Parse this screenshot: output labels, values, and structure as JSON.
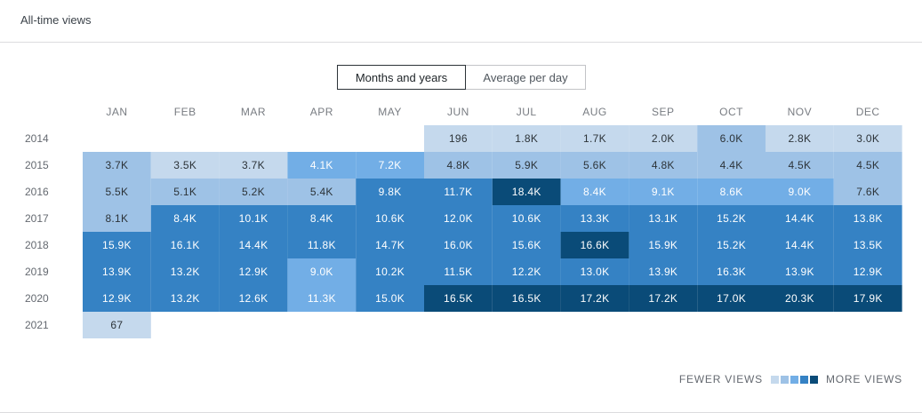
{
  "header": {
    "title": "All-time views"
  },
  "toggle": {
    "options": [
      {
        "label": "Months and years",
        "active": true
      },
      {
        "label": "Average per day",
        "active": false
      }
    ]
  },
  "legend": {
    "fewer_label": "FEWER VIEWS",
    "more_label": "MORE VIEWS",
    "scale_colors": [
      "#c5d9ed",
      "#9ec2e6",
      "#72aee6",
      "#3582c4",
      "#0a4b78"
    ]
  },
  "chart_data": {
    "type": "heatmap",
    "title": "All-time views",
    "columns": [
      "JAN",
      "FEB",
      "MAR",
      "APR",
      "MAY",
      "JUN",
      "JUL",
      "AUG",
      "SEP",
      "OCT",
      "NOV",
      "DEC"
    ],
    "rows": [
      "2014",
      "2015",
      "2016",
      "2017",
      "2018",
      "2019",
      "2020",
      "2021"
    ],
    "values": [
      [
        null,
        null,
        null,
        null,
        null,
        "196",
        "1.8K",
        "1.7K",
        "2.0K",
        "6.0K",
        "2.8K",
        "3.0K"
      ],
      [
        "3.7K",
        "3.5K",
        "3.7K",
        "4.1K",
        "7.2K",
        "4.8K",
        "5.9K",
        "5.6K",
        "4.8K",
        "4.4K",
        "4.5K",
        "4.5K"
      ],
      [
        "5.5K",
        "5.1K",
        "5.2K",
        "5.4K",
        "9.8K",
        "11.7K",
        "18.4K",
        "8.4K",
        "9.1K",
        "8.6K",
        "9.0K",
        "7.6K"
      ],
      [
        "8.1K",
        "8.4K",
        "10.1K",
        "8.4K",
        "10.6K",
        "12.0K",
        "10.6K",
        "13.3K",
        "13.1K",
        "15.2K",
        "14.4K",
        "13.8K"
      ],
      [
        "15.9K",
        "16.1K",
        "14.4K",
        "11.8K",
        "14.7K",
        "16.0K",
        "15.6K",
        "16.6K",
        "15.9K",
        "15.2K",
        "14.4K",
        "13.5K"
      ],
      [
        "13.9K",
        "13.2K",
        "12.9K",
        "9.0K",
        "10.2K",
        "11.5K",
        "12.2K",
        "13.0K",
        "13.9K",
        "16.3K",
        "13.9K",
        "12.9K"
      ],
      [
        "12.9K",
        "13.2K",
        "12.6K",
        "11.3K",
        "15.0K",
        "16.5K",
        "16.5K",
        "17.2K",
        "17.2K",
        "17.0K",
        "20.3K",
        "17.9K"
      ],
      [
        "67",
        null,
        null,
        null,
        null,
        null,
        null,
        null,
        null,
        null,
        null,
        null
      ]
    ],
    "levels": [
      [
        null,
        null,
        null,
        null,
        null,
        0,
        0,
        0,
        0,
        1,
        0,
        0
      ],
      [
        1,
        0,
        0,
        2,
        2,
        1,
        1,
        1,
        1,
        1,
        1,
        1
      ],
      [
        1,
        1,
        1,
        1,
        3,
        3,
        4,
        2,
        2,
        2,
        2,
        1
      ],
      [
        1,
        3,
        3,
        3,
        3,
        3,
        3,
        3,
        3,
        3,
        3,
        3
      ],
      [
        3,
        3,
        3,
        3,
        3,
        3,
        3,
        4,
        3,
        3,
        3,
        3
      ],
      [
        3,
        3,
        3,
        2,
        3,
        3,
        3,
        3,
        3,
        3,
        3,
        3
      ],
      [
        3,
        3,
        3,
        2,
        3,
        4,
        4,
        4,
        4,
        4,
        4,
        4
      ],
      [
        0,
        null,
        null,
        null,
        null,
        null,
        null,
        null,
        null,
        null,
        null,
        null
      ]
    ]
  }
}
